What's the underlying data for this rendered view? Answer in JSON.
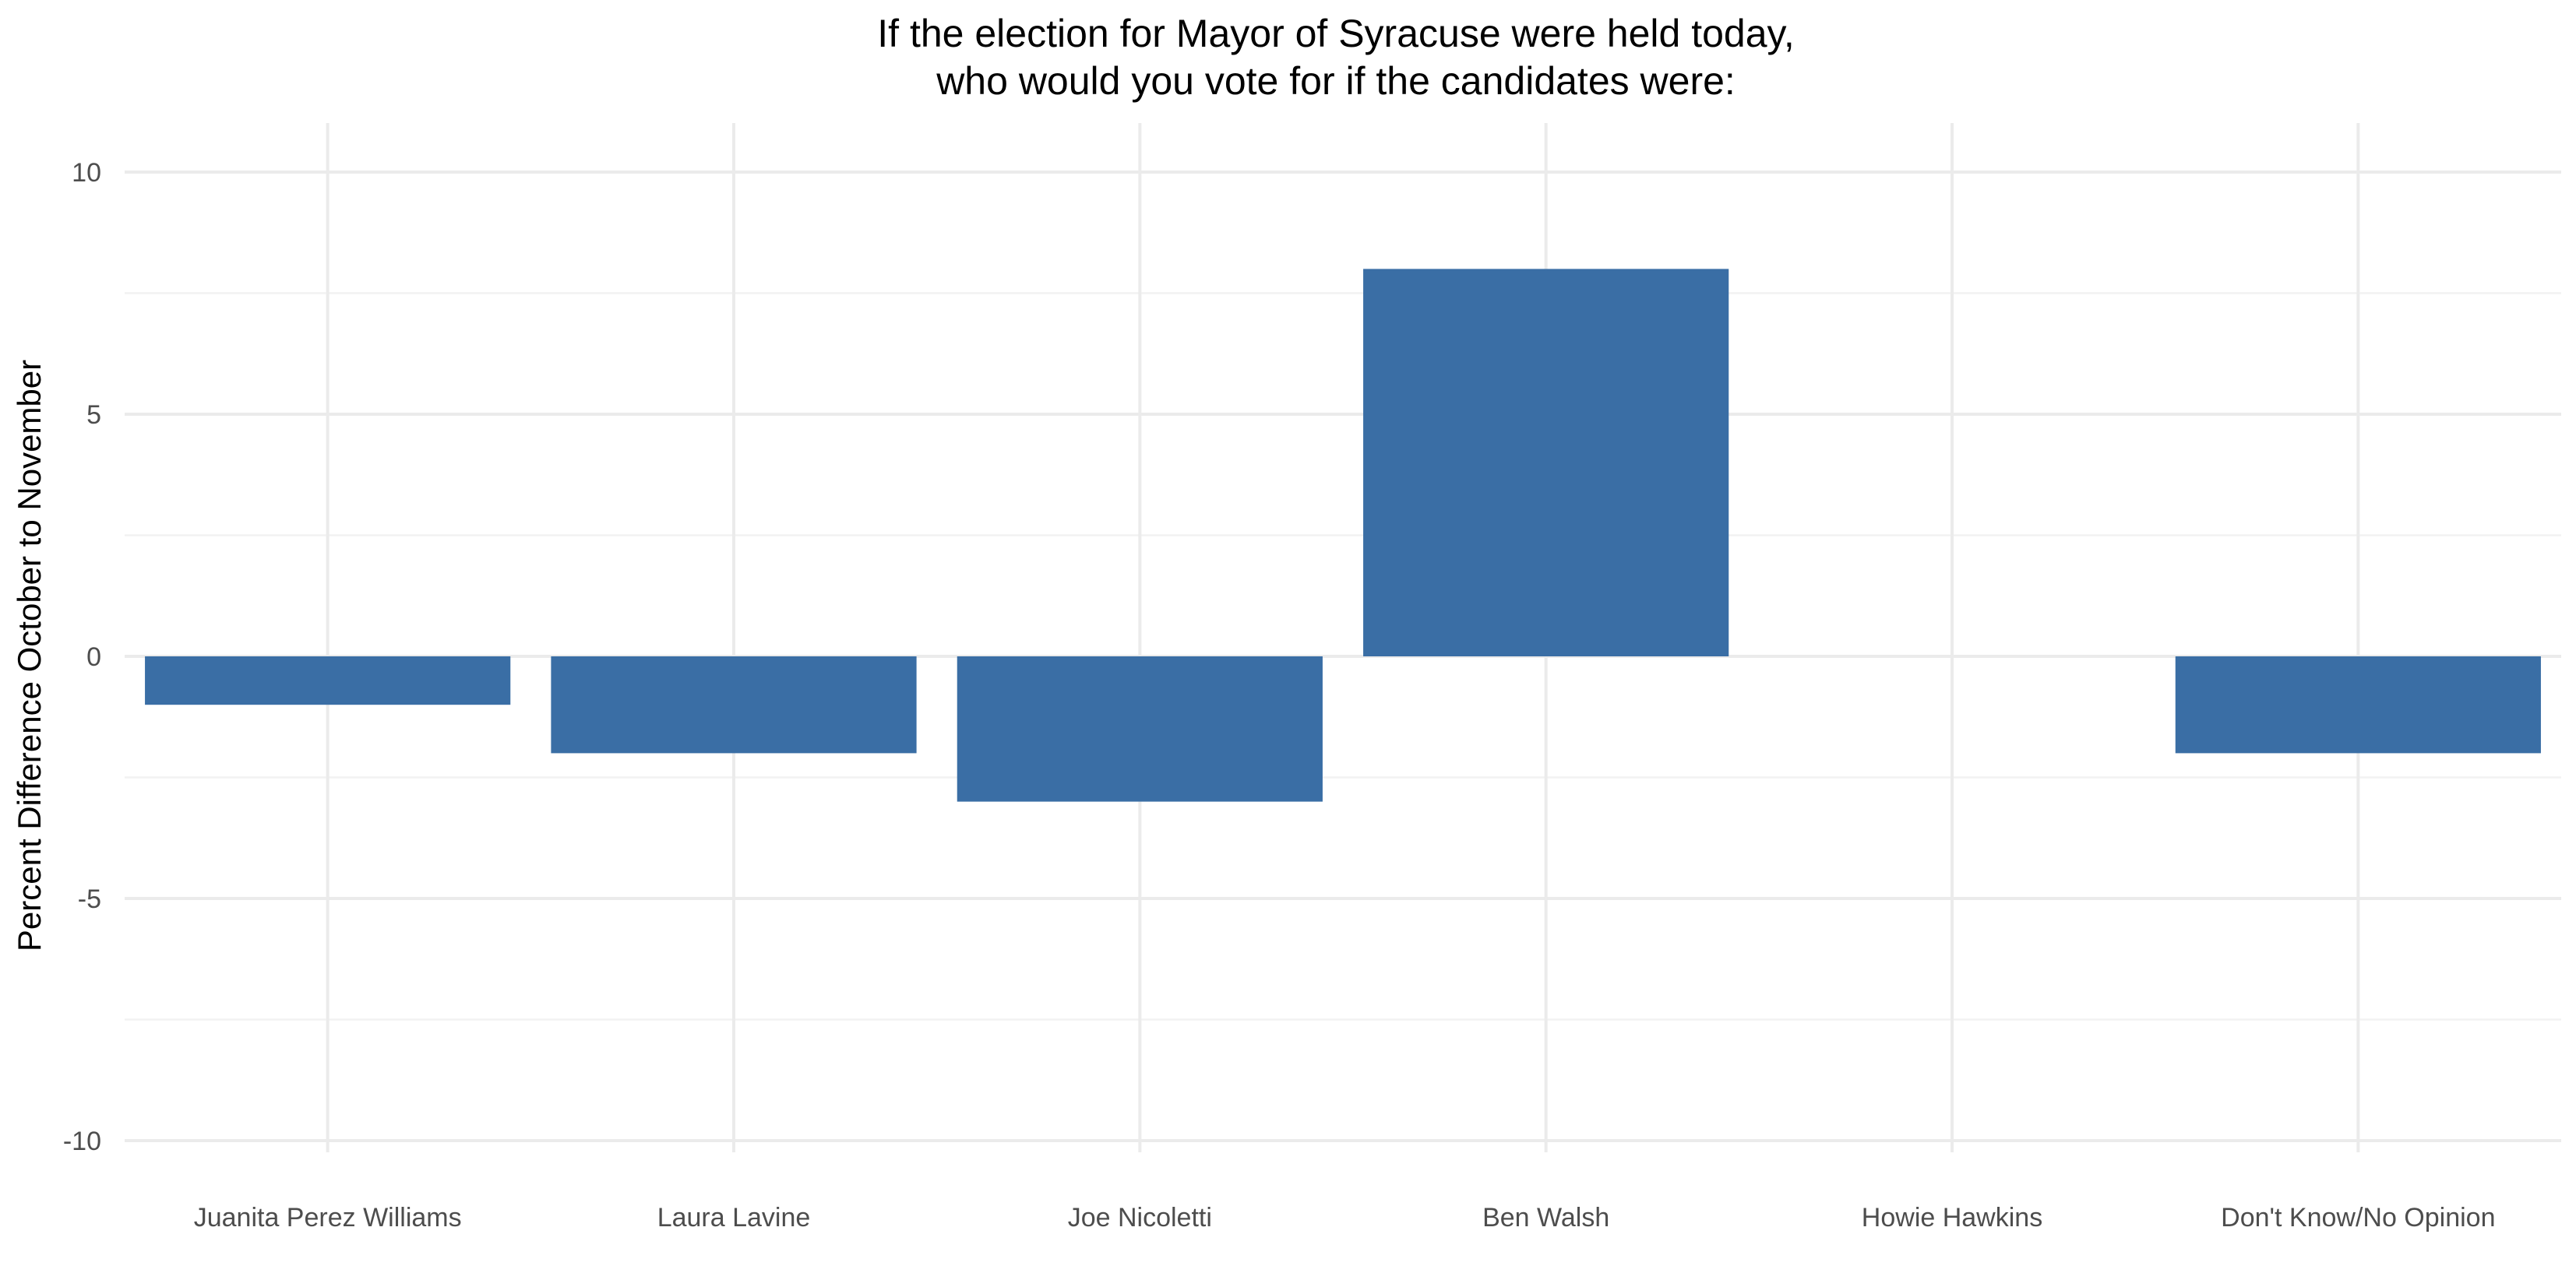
{
  "chart_data": {
    "type": "bar",
    "title": "If the election for Mayor of Syracuse were held today,\nwho would you vote for if the candidates were:",
    "title_lines": [
      "If the election for Mayor of Syracuse were held today,",
      "who would you vote for if the candidates were:"
    ],
    "xlabel": "",
    "ylabel": "Percent Difference October to November",
    "categories": [
      "Juanita Perez Williams",
      "Laura Lavine",
      "Joe Nicoletti",
      "Ben Walsh",
      "Howie Hawkins",
      "Don't Know/No Opinion"
    ],
    "values": [
      -1,
      -2,
      -3,
      8,
      0,
      -2
    ],
    "ylim": [
      -10,
      10
    ],
    "yticks": [
      -10,
      -5,
      0,
      5,
      10
    ],
    "grid": true,
    "legend": "none",
    "bar_color": "#3a6ea5"
  }
}
